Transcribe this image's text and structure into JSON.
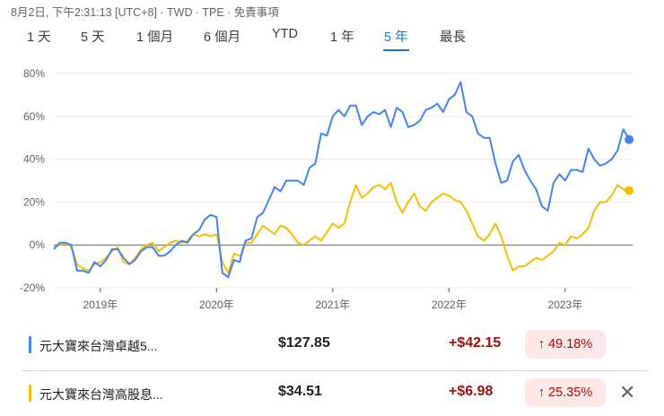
{
  "header": {
    "meta": "8月2日, 下午2:31:13 [UTC+8] · TWD · TPE · 免責事項"
  },
  "tabs": [
    {
      "label": "1 天"
    },
    {
      "label": "5 天"
    },
    {
      "label": "1 個月"
    },
    {
      "label": "6 個月"
    },
    {
      "label": "YTD"
    },
    {
      "label": "1 年"
    },
    {
      "label": "5 年"
    },
    {
      "label": "最長"
    }
  ],
  "active_tab": 6,
  "legend": [
    {
      "name": "元大寶來台灣卓越5...",
      "price": "$127.85",
      "change": "+$42.15",
      "pct": "↑ 49.18%",
      "color": "#4285f4"
    },
    {
      "name": "元大寶來台灣高股息...",
      "price": "$34.51",
      "change": "+$6.98",
      "pct": "↑ 25.35%",
      "color": "#fbbc04"
    }
  ],
  "close_icon": "✕",
  "chart_data": {
    "type": "line",
    "x_unit": "year",
    "xlim": [
      2018.6,
      2023.58
    ],
    "ylim": [
      -20,
      80
    ],
    "yticks": [
      -20,
      0,
      20,
      40,
      60,
      80
    ],
    "ytick_labels": [
      "-20%",
      "0%",
      "20%",
      "40%",
      "60%",
      "80%"
    ],
    "xticks": [
      2019,
      2020,
      2021,
      2022,
      2023
    ],
    "xtick_labels": [
      "2019年",
      "2020年",
      "2021年",
      "2022年",
      "2023年"
    ],
    "grid": true,
    "series": [
      {
        "name": "元大寶來台灣卓越5...",
        "color": "#4285f4",
        "x": [
          2018.6,
          2018.65,
          2018.7,
          2018.75,
          2018.8,
          2018.85,
          2018.9,
          2018.95,
          2019.0,
          2019.05,
          2019.1,
          2019.15,
          2019.2,
          2019.25,
          2019.3,
          2019.35,
          2019.4,
          2019.45,
          2019.5,
          2019.55,
          2019.6,
          2019.65,
          2019.7,
          2019.75,
          2019.8,
          2019.85,
          2019.9,
          2019.95,
          2020.0,
          2020.05,
          2020.1,
          2020.15,
          2020.2,
          2020.22,
          2020.25,
          2020.3,
          2020.35,
          2020.4,
          2020.45,
          2020.5,
          2020.55,
          2020.6,
          2020.65,
          2020.7,
          2020.75,
          2020.8,
          2020.85,
          2020.9,
          2020.95,
          2021.0,
          2021.05,
          2021.1,
          2021.15,
          2021.2,
          2021.25,
          2021.3,
          2021.35,
          2021.4,
          2021.45,
          2021.5,
          2021.55,
          2021.6,
          2021.65,
          2021.7,
          2021.75,
          2021.8,
          2021.85,
          2021.9,
          2021.95,
          2022.0,
          2022.05,
          2022.1,
          2022.15,
          2022.2,
          2022.25,
          2022.3,
          2022.35,
          2022.4,
          2022.45,
          2022.5,
          2022.55,
          2022.6,
          2022.65,
          2022.7,
          2022.75,
          2022.8,
          2022.85,
          2022.9,
          2022.95,
          2023.0,
          2023.05,
          2023.1,
          2023.15,
          2023.2,
          2023.25,
          2023.3,
          2023.35,
          2023.4,
          2023.45,
          2023.5,
          2023.55
        ],
        "y": [
          -2,
          1,
          1,
          0,
          -12,
          -12,
          -13,
          -8,
          -10,
          -7,
          -2,
          -2,
          -6,
          -9,
          -7,
          -3,
          -1,
          -1,
          -5,
          -5,
          -3,
          0,
          2,
          1,
          5,
          7,
          12,
          14,
          13,
          -13,
          -15,
          -7,
          -8,
          -3,
          2,
          3,
          13,
          15,
          21,
          27,
          25,
          30,
          30,
          30,
          28,
          36,
          38,
          52,
          51,
          60,
          63,
          60,
          65,
          65,
          56,
          60,
          62,
          61,
          63,
          55,
          64,
          62,
          55,
          56,
          58,
          63,
          64,
          66,
          62,
          68,
          70,
          76,
          62,
          60,
          52,
          50,
          50,
          38,
          29,
          30,
          39,
          42,
          35,
          30,
          26,
          18,
          16,
          29,
          33,
          30,
          35,
          35,
          34,
          45,
          40,
          37,
          38,
          40,
          44,
          54,
          49.18
        ]
      },
      {
        "name": "元大寶來台灣高股息...",
        "color": "#fbbc04",
        "x": [
          2018.6,
          2018.65,
          2018.7,
          2018.75,
          2018.8,
          2018.85,
          2018.9,
          2018.95,
          2019.0,
          2019.05,
          2019.1,
          2019.15,
          2019.2,
          2019.25,
          2019.3,
          2019.35,
          2019.4,
          2019.45,
          2019.5,
          2019.55,
          2019.6,
          2019.65,
          2019.7,
          2019.75,
          2019.8,
          2019.85,
          2019.9,
          2019.95,
          2020.0,
          2020.05,
          2020.1,
          2020.15,
          2020.2,
          2020.22,
          2020.25,
          2020.3,
          2020.35,
          2020.4,
          2020.45,
          2020.5,
          2020.55,
          2020.6,
          2020.65,
          2020.7,
          2020.75,
          2020.8,
          2020.85,
          2020.9,
          2020.95,
          2021.0,
          2021.05,
          2021.1,
          2021.15,
          2021.2,
          2021.25,
          2021.3,
          2021.35,
          2021.4,
          2021.45,
          2021.5,
          2021.55,
          2021.6,
          2021.65,
          2021.7,
          2021.75,
          2021.8,
          2021.85,
          2021.9,
          2021.95,
          2022.0,
          2022.05,
          2022.1,
          2022.15,
          2022.2,
          2022.25,
          2022.3,
          2022.35,
          2022.4,
          2022.45,
          2022.5,
          2022.55,
          2022.6,
          2022.65,
          2022.7,
          2022.75,
          2022.8,
          2022.85,
          2022.9,
          2022.95,
          2023.0,
          2023.05,
          2023.1,
          2023.15,
          2023.2,
          2023.25,
          2023.3,
          2023.35,
          2023.4,
          2023.45,
          2023.5,
          2023.55
        ],
        "y": [
          -1,
          0,
          1,
          -1,
          -9,
          -11,
          -12,
          -9,
          -8,
          -6,
          -3,
          -1,
          -8,
          -9,
          -6,
          -2,
          0,
          1,
          -3,
          -1,
          1,
          2,
          1,
          2,
          5,
          4,
          5,
          4,
          5,
          -8,
          -13,
          -4,
          -5,
          -4,
          1,
          1,
          5,
          9,
          7,
          5,
          9,
          8,
          5,
          1,
          0,
          2,
          4,
          2,
          6,
          10,
          8,
          10,
          20,
          28,
          22,
          24,
          27,
          28,
          26,
          29,
          20,
          15,
          20,
          24,
          18,
          16,
          20,
          22,
          24,
          23,
          21,
          20,
          16,
          10,
          4,
          2,
          5,
          10,
          4,
          -5,
          -12,
          -10,
          -10,
          -8,
          -6,
          -7,
          -5,
          -3,
          1,
          0,
          4,
          3,
          5,
          8,
          16,
          20,
          20,
          23,
          28,
          26,
          25.35
        ]
      }
    ]
  }
}
